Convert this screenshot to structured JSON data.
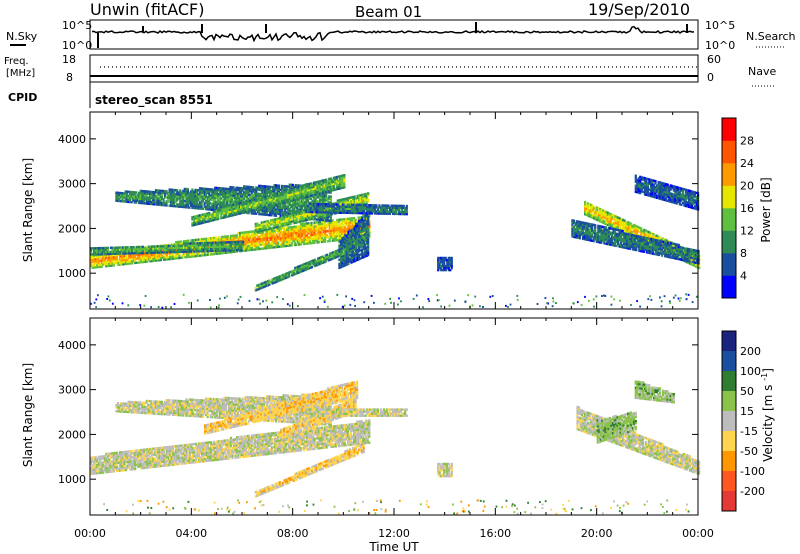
{
  "header": {
    "station": "Unwin (fitACF)",
    "beam": "Beam 01",
    "date": "19/Sep/2010"
  },
  "noise_panel": {
    "left_label": "N.Sky",
    "right_label": "N.Search",
    "left_ticks": [
      "10^5",
      "10^0"
    ],
    "right_ticks": [
      "10^5",
      "10^0"
    ]
  },
  "freq_panel": {
    "left_label_1": "Freq.",
    "left_label_2": "[MHz]",
    "right_label": "Nave",
    "left_ticks": [
      "18",
      "8"
    ],
    "right_ticks": [
      "60",
      "0"
    ]
  },
  "cpid": {
    "label": "CPID",
    "value": "stereo_scan 8551"
  },
  "colors": {
    "power": [
      "#0000ff",
      "#1a4fa0",
      "#2e8b57",
      "#5fbf3f",
      "#e6e600",
      "#ff9900",
      "#ff5500",
      "#ff0000"
    ],
    "velocity": [
      "#1a237e",
      "#1a4fa0",
      "#2e7d32",
      "#8bc34a",
      "#bdbdbd",
      "#ffd54f",
      "#ff9800",
      "#ff5722",
      "#e53935"
    ]
  },
  "chart_data": [
    {
      "type": "heatmap",
      "name": "power",
      "ylabel": "Slant Range [km]",
      "ylim": [
        200,
        4600
      ],
      "y_ticks": [
        1000,
        2000,
        3000,
        4000
      ],
      "xlim": [
        0,
        24
      ],
      "colorbar_label": "Power [dB]",
      "colorbar_ticks": [
        4,
        8,
        12,
        16,
        20,
        24,
        28
      ],
      "colorbar_range": [
        0,
        32
      ],
      "bands": [
        {
          "t": [
            0.0,
            11.0
          ],
          "r0": [
            1100,
            1800
          ],
          "r1": [
            1400,
            2300
          ],
          "level": 24
        },
        {
          "t": [
            0.0,
            6.0
          ],
          "r0": [
            1400,
            1500
          ],
          "r1": [
            1550,
            1700
          ],
          "level": 14
        },
        {
          "t": [
            1.0,
            9.5
          ],
          "r0": [
            2600,
            2150
          ],
          "r1": [
            2800,
            3000
          ],
          "level": 12
        },
        {
          "t": [
            4.0,
            10.0
          ],
          "r0": [
            2050,
            2900
          ],
          "r1": [
            2250,
            3200
          ],
          "level": 16
        },
        {
          "t": [
            6.5,
            11.0
          ],
          "r0": [
            1900,
            2500
          ],
          "r1": [
            2100,
            2800
          ],
          "level": 18
        },
        {
          "t": [
            6.5,
            10.8
          ],
          "r0": [
            600,
            1600
          ],
          "r1": [
            700,
            1800
          ],
          "level": 14
        },
        {
          "t": [
            8.5,
            12.5
          ],
          "r0": [
            2350,
            2300
          ],
          "r1": [
            2550,
            2500
          ],
          "level": 10
        },
        {
          "t": [
            9.8,
            11.0
          ],
          "r0": [
            1100,
            1400
          ],
          "r1": [
            1700,
            2400
          ],
          "level": 10
        },
        {
          "t": [
            13.7,
            14.3
          ],
          "r0": [
            1050,
            1050
          ],
          "r1": [
            1350,
            1350
          ],
          "level": 8
        },
        {
          "t": [
            19.5,
            24.0
          ],
          "r0": [
            2300,
            1100
          ],
          "r1": [
            2600,
            1400
          ],
          "level": 22
        },
        {
          "t": [
            19.0,
            24.0
          ],
          "r0": [
            1800,
            1200
          ],
          "r1": [
            2200,
            1500
          ],
          "level": 10
        },
        {
          "t": [
            21.5,
            24.0
          ],
          "r0": [
            2800,
            2400
          ],
          "r1": [
            3200,
            2800
          ],
          "level": 8
        }
      ]
    },
    {
      "type": "heatmap",
      "name": "velocity",
      "xlabel": "Time UT",
      "ylabel": "Slant Range [km]",
      "ylim": [
        200,
        4600
      ],
      "y_ticks": [
        1000,
        2000,
        3000,
        4000
      ],
      "xlim": [
        0,
        24
      ],
      "x_ticks": [
        "00:00",
        "04:00",
        "08:00",
        "12:00",
        "16:00",
        "20:00",
        "00:00"
      ],
      "colorbar_label": "Velocity [m s^-1]",
      "colorbar_ticks": [
        200,
        100,
        50,
        15,
        -15,
        -50,
        -100,
        -200
      ],
      "bands": [
        {
          "t": [
            0.0,
            11.0
          ],
          "r0": [
            1100,
            1800
          ],
          "r1": [
            1500,
            2300
          ],
          "level": 0
        },
        {
          "t": [
            1.0,
            9.5
          ],
          "r0": [
            2500,
            2200
          ],
          "r1": [
            2700,
            2900
          ],
          "level": 0
        },
        {
          "t": [
            4.5,
            10.5
          ],
          "r0": [
            2000,
            2800
          ],
          "r1": [
            2200,
            3200
          ],
          "level": -40
        },
        {
          "t": [
            7.5,
            10.5
          ],
          "r0": [
            1900,
            2500
          ],
          "r1": [
            2100,
            2800
          ],
          "level": -40
        },
        {
          "t": [
            6.5,
            10.8
          ],
          "r0": [
            600,
            1600
          ],
          "r1": [
            700,
            1800
          ],
          "level": -40
        },
        {
          "t": [
            8.5,
            12.5
          ],
          "r0": [
            2400,
            2400
          ],
          "r1": [
            2550,
            2550
          ],
          "level": 0
        },
        {
          "t": [
            13.7,
            14.3
          ],
          "r0": [
            1050,
            1050
          ],
          "r1": [
            1350,
            1350
          ],
          "level": 0
        },
        {
          "t": [
            19.2,
            24.0
          ],
          "r0": [
            2100,
            1100
          ],
          "r1": [
            2600,
            1400
          ],
          "level": 0
        },
        {
          "t": [
            20.0,
            21.5
          ],
          "r0": [
            1800,
            2100
          ],
          "r1": [
            2300,
            2500
          ],
          "level": 40
        },
        {
          "t": [
            21.5,
            23.0
          ],
          "r0": [
            2800,
            2700
          ],
          "r1": [
            3200,
            2900
          ],
          "level": 40
        }
      ]
    }
  ]
}
